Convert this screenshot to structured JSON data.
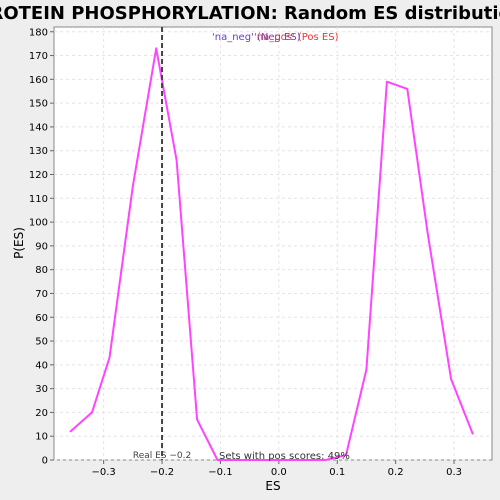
{
  "chart_data": {
    "type": "line",
    "title": "PROTEIN PHOSPHORYLATION: Random ES distribution",
    "xlabel": "ES",
    "ylabel": "P(ES)",
    "xlim": [
      -0.385,
      0.365
    ],
    "ylim": [
      0,
      182
    ],
    "xticks": [
      -0.3,
      -0.2,
      -0.1,
      0.0,
      0.1,
      0.2,
      0.3
    ],
    "xtick_labels": [
      "−0.3",
      "−0.2",
      "−0.1",
      "0.0",
      "0.1",
      "0.2",
      "0.3"
    ],
    "yticks": [
      0,
      10,
      20,
      30,
      40,
      50,
      60,
      70,
      80,
      90,
      100,
      110,
      120,
      130,
      140,
      150,
      160,
      170,
      180
    ],
    "grid": true,
    "series": [
      {
        "name": "",
        "color": "#ff44ff",
        "x": [
          -0.357,
          -0.32,
          -0.29,
          -0.25,
          -0.21,
          -0.175,
          -0.14,
          -0.105,
          0.08,
          0.115,
          0.15,
          0.185,
          0.22,
          0.255,
          0.295,
          0.332
        ],
        "y": [
          12,
          20,
          43,
          115,
          173,
          126,
          17,
          0,
          0,
          2,
          38,
          159,
          156,
          95,
          34,
          11
        ]
      }
    ],
    "real_es": {
      "x": -0.2,
      "label": "Real ES −0.2"
    },
    "legend": {
      "placement": "top-center",
      "items": [
        {
          "label": "'na_neg' (Neg ES)",
          "color": "#6a3dcc"
        },
        {
          "label": "'na_pos' (Pos ES)",
          "color": "#ee3333"
        }
      ]
    },
    "annotation": "Sets with pos scores: 49%"
  }
}
